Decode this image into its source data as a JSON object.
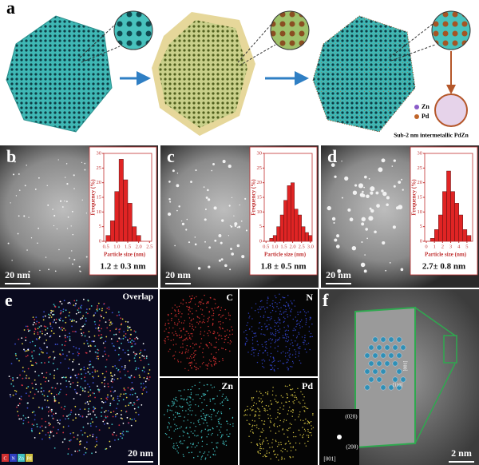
{
  "panel_a": {
    "label": "a",
    "legend": [
      "Zn",
      "Pd"
    ],
    "caption": "Sub-2 nm intermetallic PdZn"
  },
  "chart_data": [
    {
      "type": "histogram",
      "panel": "b",
      "scale_bar": "20 nm",
      "stat": "1.2 ± 0.3 nm",
      "x_label": "Particle size (nm)",
      "y_label": "Frequency (%)",
      "color": "#e02424",
      "bins": [
        0.5,
        0.7,
        0.9,
        1.1,
        1.3,
        1.5,
        1.7,
        1.9,
        2.1
      ],
      "values": [
        2,
        7,
        17,
        28,
        21,
        13,
        5,
        2
      ],
      "xlim": [
        0.4,
        2.6
      ],
      "xticks": [
        0.5,
        {
          "value": 1,
          "label": "1.0"
        },
        1.5,
        {
          "value": 2,
          "label": "2.0"
        },
        2.5
      ],
      "ylim": [
        0,
        30
      ],
      "yticks": [
        0,
        5,
        10,
        15,
        20,
        25,
        30
      ]
    },
    {
      "type": "histogram",
      "panel": "c",
      "scale_bar": "20 nm",
      "stat": "1.8 ± 0.5 nm",
      "x_label": "Particle size (nm)",
      "y_label": "Frequency (%)",
      "color": "#e02424",
      "bins": [
        0.7,
        0.9,
        1.1,
        1.3,
        1.5,
        1.7,
        1.9,
        2.1,
        2.3,
        2.5,
        2.7,
        2.9,
        3.1
      ],
      "values": [
        1,
        2,
        5,
        9,
        14,
        19,
        20,
        11,
        9,
        5,
        3,
        2
      ],
      "xlim": [
        0.4,
        3.1
      ],
      "xticks": [
        0.5,
        {
          "value": 1,
          "label": "1.0"
        },
        1.5,
        {
          "value": 2,
          "label": "2.0"
        },
        2.5,
        {
          "value": 3,
          "label": "3.0"
        }
      ],
      "ylim": [
        0,
        30
      ],
      "yticks": [
        0,
        5,
        10,
        15,
        20,
        25,
        30
      ]
    },
    {
      "type": "histogram",
      "panel": "d",
      "scale_bar": "20 nm",
      "stat": "2.7± 0.8 nm",
      "x_label": "Particle size (nm)",
      "y_label": "Frequency (%)",
      "color": "#e02424",
      "bins": [
        0.5,
        1,
        1.5,
        2,
        2.5,
        3,
        3.5,
        4,
        4.5,
        5,
        5.5
      ],
      "values": [
        1,
        4,
        9,
        17,
        24,
        17,
        13,
        9,
        4,
        2
      ],
      "xlim": [
        -0.2,
        5.7
      ],
      "xticks": [
        0,
        1,
        2,
        3,
        4,
        5
      ],
      "ylim": [
        0,
        30
      ],
      "yticks": [
        0,
        5,
        10,
        15,
        20,
        25,
        30
      ]
    }
  ],
  "panel_e": {
    "label": "e",
    "overlap": "Overlap",
    "maps": [
      "C",
      "N",
      "Zn",
      "Pd"
    ],
    "scale_bar": "20 nm",
    "legend": [
      "C",
      "N",
      "Zn",
      "Pd"
    ]
  },
  "panel_f": {
    "label": "f",
    "spots": [
      "(020)",
      "(200)"
    ],
    "zone_axis": "[001]",
    "directions": [
      "[001]",
      "[110]"
    ],
    "scale_bar": "2 nm"
  }
}
